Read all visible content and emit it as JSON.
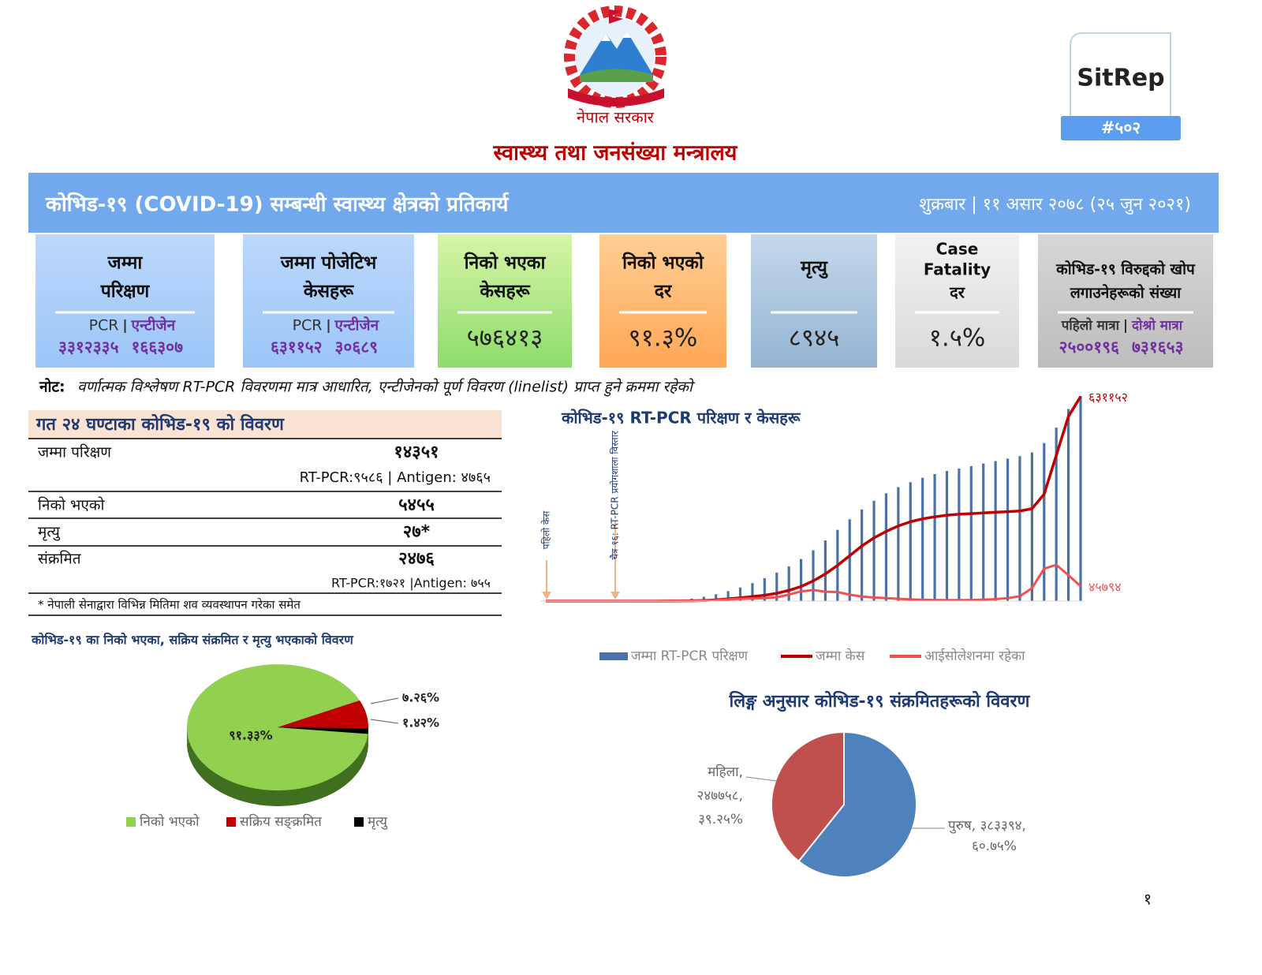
{
  "header": {
    "gov": "नेपाल सरकार",
    "ministry": "स्वास्थ्य तथा जनसंख्या मन्त्रालय",
    "sitrep": "SitRep",
    "number": "#५०२"
  },
  "banner": {
    "title": "कोभिड-१९ (COVID-19) सम्बन्धी स्वास्थ्य क्षेत्रको प्रतिकार्य",
    "date": "शुक्रबार | ११ असार २०७८ (२५ जुन २०२१)"
  },
  "cards": [
    {
      "title": [
        "जम्मा",
        "परिक्षण"
      ],
      "labels": [
        "PCR",
        "एन्टीजेन"
      ],
      "values": [
        "३३१२३३५",
        "१६६३०७"
      ]
    },
    {
      "title": [
        "जम्मा पोजेटिभ",
        "केसहरू"
      ],
      "labels": [
        "PCR",
        "एन्टीजेन"
      ],
      "values": [
        "६३११५२",
        "३०६८९"
      ]
    },
    {
      "title": [
        "निको भएका",
        "केसहरू"
      ],
      "values": [
        "५७६४१३"
      ]
    },
    {
      "title": [
        "निको भएको",
        "दर"
      ],
      "values": [
        "९१.३%"
      ]
    },
    {
      "title": [
        "मृत्यु"
      ],
      "values": [
        "८९४५"
      ]
    },
    {
      "title": [
        "Case",
        "Fatality",
        "दर"
      ],
      "values": [
        "१.५%"
      ]
    },
    {
      "title": [
        "कोभिड-१९ विरुद्दको खोप",
        "लगाउनेहरूको संख्या"
      ],
      "labels": [
        "पहिलो मात्रा",
        "दोश्रो मात्रा"
      ],
      "values": [
        "२५००१९६",
        "७३१६५३"
      ]
    }
  ],
  "note": {
    "label": "नोट:",
    "text": "वर्णात्मक विश्लेषण RT-PCR विवरणमा मात्र आधारित, एन्टीजेनको पूर्ण विवरण (linelist) प्राप्त हुने क्रममा रहेको"
  },
  "table": {
    "title": "गत २४ घण्टाका कोभिड-१९ को विवरण",
    "rows": [
      [
        "जम्मा परिक्षण",
        "१४३५१",
        "RT-PCR:९५८६ | Antigen: ४७६५"
      ],
      [
        "निको भएको",
        "५४५५"
      ],
      [
        "मृत्यु",
        "२७*"
      ],
      [
        "संक्रमित",
        "२४७६",
        "RT-PCR:१७२१ |Antigen: ७५५"
      ]
    ],
    "footnote": "* नेपाली सेनाद्वारा विभिन्न मितिमा शव व्यवस्थापन गरेका समेत"
  },
  "chart_data": [
    {
      "type": "combo",
      "title": "कोभिड-१९ RT-PCR परिक्षण र केसहरू",
      "annotations": [
        "पहिलो केस",
        "चैत्र १६: RT-PCR प्रयोगशाला विस्तार"
      ],
      "categories": [
        null,
        null,
        null,
        null,
        null,
        null,
        null,
        null,
        null,
        null,
        null,
        null,
        null,
        null,
        null,
        null,
        null,
        null,
        null,
        null,
        null,
        null,
        null,
        null,
        null,
        null,
        null,
        null,
        null,
        null,
        null,
        null,
        null,
        null,
        null,
        null,
        null,
        null,
        null,
        null,
        null,
        null,
        null,
        null,
        null
      ],
      "ylim": [
        0,
        650000
      ],
      "y2lim": [
        0,
        3400000
      ],
      "series": [
        {
          "name": "जम्मा RT-PCR परिक्षण",
          "kind": "bar",
          "axis": "y2",
          "color": "#4a72a8",
          "values": [
            0,
            0,
            0,
            0,
            0,
            1000,
            2000,
            3000,
            5000,
            7000,
            9000,
            20000,
            40000,
            70000,
            110000,
            160000,
            220000,
            290000,
            370000,
            460000,
            560000,
            680000,
            820000,
            980000,
            1150000,
            1320000,
            1480000,
            1620000,
            1740000,
            1840000,
            1920000,
            1990000,
            2050000,
            2100000,
            2140000,
            2180000,
            2220000,
            2260000,
            2300000,
            2340000,
            2400000,
            2550000,
            2800000,
            3100000,
            3312335
          ]
        },
        {
          "name": "जम्मा केस",
          "kind": "line",
          "color": "#c00000",
          "end_label": "६३११५२",
          "values": [
            1,
            1,
            1,
            1,
            5,
            9,
            16,
            30,
            57,
            100,
            200,
            500,
            1000,
            2000,
            4000,
            7000,
            10000,
            14000,
            18000,
            24000,
            33000,
            45000,
            62000,
            84000,
            110000,
            140000,
            170000,
            195000,
            215000,
            232000,
            245000,
            254000,
            260000,
            265000,
            268000,
            270000,
            272000,
            274000,
            276000,
            278000,
            285000,
            330000,
            450000,
            570000,
            631152
          ]
        },
        {
          "name": "आईसोलेशनमा रहेका",
          "kind": "line",
          "color": "#f05050",
          "end_label": "४५७९४",
          "values": [
            0,
            0,
            0,
            0,
            3,
            7,
            14,
            25,
            40,
            80,
            150,
            400,
            800,
            1500,
            3000,
            5000,
            6500,
            8000,
            9000,
            12000,
            20000,
            30000,
            34000,
            29000,
            28000,
            20000,
            14000,
            11000,
            9000,
            7000,
            5000,
            4000,
            3500,
            3000,
            3000,
            3500,
            4500,
            6000,
            9000,
            15000,
            40000,
            100000,
            112000,
            80000,
            45794
          ]
        }
      ]
    },
    {
      "type": "pie",
      "title": "कोभिड-१९ का निको भएका, सक्रिय संक्रमित र मृत्यु भएकाको विवरण",
      "categories": [
        "निको भएको",
        "सक्रिय सङ्क्रमित",
        "मृत्यु"
      ],
      "values": [
        91.33,
        7.26,
        1.42
      ],
      "value_labels": [
        "९१.३३%",
        "७.२६%",
        "१.४२%"
      ],
      "colors": [
        "#92d050",
        "#c00000",
        "#000000"
      ]
    },
    {
      "type": "pie",
      "title": "लिङ्ग अनुसार कोभिड-१९ संक्रमितहरूको विवरण",
      "values": [
        60.75,
        39.25
      ],
      "slice_labels": [
        [
          "पुरुष, ३८३३९४,",
          "६०.७५%"
        ],
        [
          "महिला,",
          "२४७७५८,",
          "३९.२५%"
        ]
      ],
      "colors": [
        "#4f81bd",
        "#c0504d"
      ]
    }
  ],
  "page_number": "१"
}
